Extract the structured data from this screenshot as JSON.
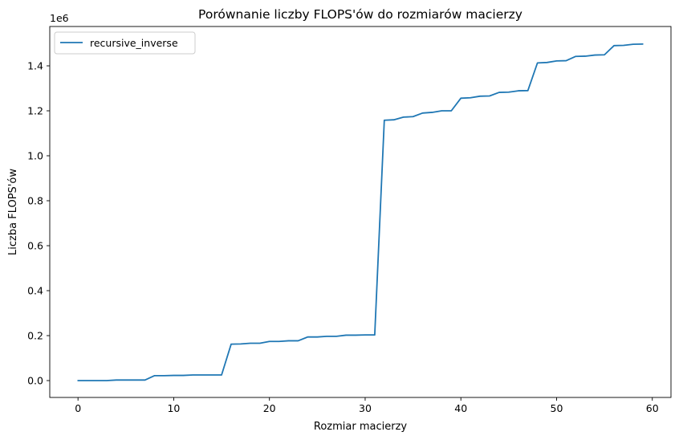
{
  "chart_data": {
    "type": "line",
    "title": "Porównanie liczby FLOPS'ów do rozmiarów macierzy",
    "xlabel": "Rozmiar macierzy",
    "ylabel": "Liczba FLOPS'ów",
    "y_offset_label": "1e6",
    "xlim": [
      -2.95,
      61.95
    ],
    "ylim": [
      -75000,
      1575000
    ],
    "x_ticks": [
      0,
      10,
      20,
      30,
      40,
      50,
      60
    ],
    "x_tick_labels": [
      "0",
      "10",
      "20",
      "30",
      "40",
      "50",
      "60"
    ],
    "y_ticks": [
      0,
      200000,
      400000,
      600000,
      800000,
      1000000,
      1200000,
      1400000
    ],
    "y_tick_labels": [
      "0.0",
      "0.2",
      "0.4",
      "0.6",
      "0.8",
      "1.0",
      "1.2",
      "1.4"
    ],
    "grid": false,
    "legend_position": "top-left",
    "series": [
      {
        "name": "recursive_inverse",
        "color": "#1f77b4",
        "x": [
          0,
          1,
          2,
          3,
          4,
          5,
          6,
          7,
          8,
          9,
          10,
          11,
          12,
          13,
          14,
          15,
          16,
          17,
          18,
          19,
          20,
          21,
          22,
          23,
          24,
          25,
          26,
          27,
          28,
          29,
          30,
          31,
          32,
          33,
          34,
          35,
          36,
          37,
          38,
          39,
          40,
          41,
          42,
          43,
          44,
          45,
          46,
          47,
          48,
          49,
          50,
          51,
          52,
          53,
          54,
          55,
          56,
          57,
          58,
          59
        ],
        "y": [
          0,
          0,
          0,
          0,
          2500,
          2500,
          2500,
          2500,
          22000,
          22000,
          23000,
          23000,
          25000,
          25000,
          25000,
          25000,
          162000,
          163000,
          166000,
          166000,
          174000,
          174000,
          177000,
          177000,
          194000,
          194000,
          197000,
          197000,
          202000,
          202000,
          203000,
          203000,
          1158000,
          1160000,
          1172000,
          1174000,
          1190000,
          1193000,
          1200000,
          1200000,
          1256000,
          1258000,
          1265000,
          1266000,
          1282000,
          1283000,
          1289000,
          1290000,
          1413000,
          1415000,
          1422000,
          1423000,
          1442000,
          1443000,
          1448000,
          1449000,
          1490000,
          1491000,
          1496000,
          1497000
        ]
      }
    ]
  }
}
